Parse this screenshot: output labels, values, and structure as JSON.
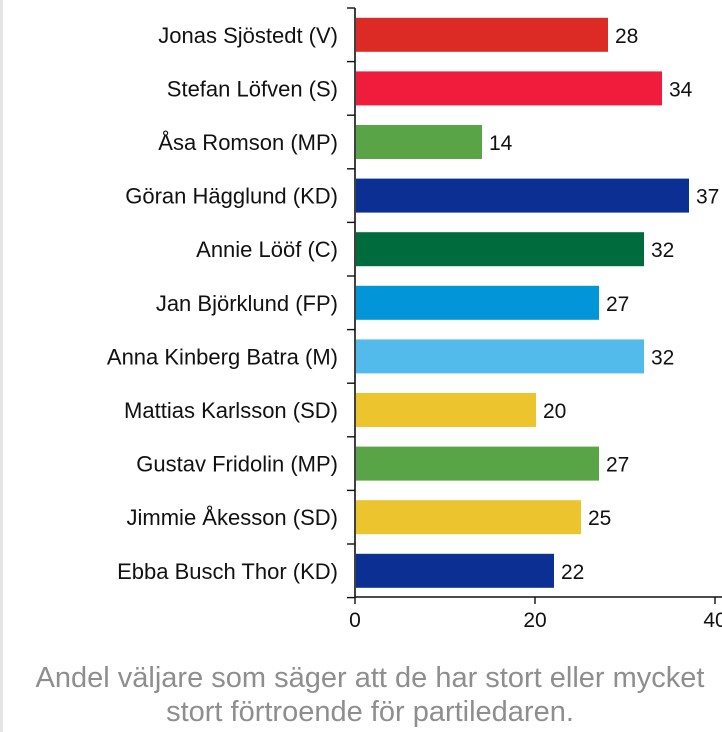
{
  "chart_data": {
    "type": "bar",
    "orientation": "horizontal",
    "categories": [
      "Jonas Sjöstedt (V)",
      "Stefan Löfven (S)",
      "Åsa Romson (MP)",
      "Göran Hägglund (KD)",
      "Annie Lööf (C)",
      "Jan Björklund (FP)",
      "Anna Kinberg Batra (M)",
      "Mattias Karlsson (SD)",
      "Gustav Fridolin (MP)",
      "Jimmie Åkesson (SD)",
      "Ebba Busch Thor (KD)"
    ],
    "values": [
      28,
      34,
      14,
      37,
      32,
      27,
      32,
      20,
      27,
      25,
      22
    ],
    "value_labels": [
      "28",
      "34",
      "14",
      "37",
      "32",
      "27",
      "32",
      "20",
      "27",
      "25",
      "22"
    ],
    "colors": [
      "#dc2b25",
      "#f01c3c",
      "#59a447",
      "#0b2f92",
      "#006b3c",
      "#0296d8",
      "#53bbec",
      "#ebc42e",
      "#59a447",
      "#ebc42e",
      "#0b2f92"
    ],
    "xlim": [
      0,
      40
    ],
    "xticks": [
      0,
      20,
      40
    ],
    "xtick_labels": [
      "0",
      "20",
      "40"
    ],
    "grid": false,
    "caption": "Andel väljare som säger att de har stort eller mycket stort förtroende för partiledaren."
  }
}
